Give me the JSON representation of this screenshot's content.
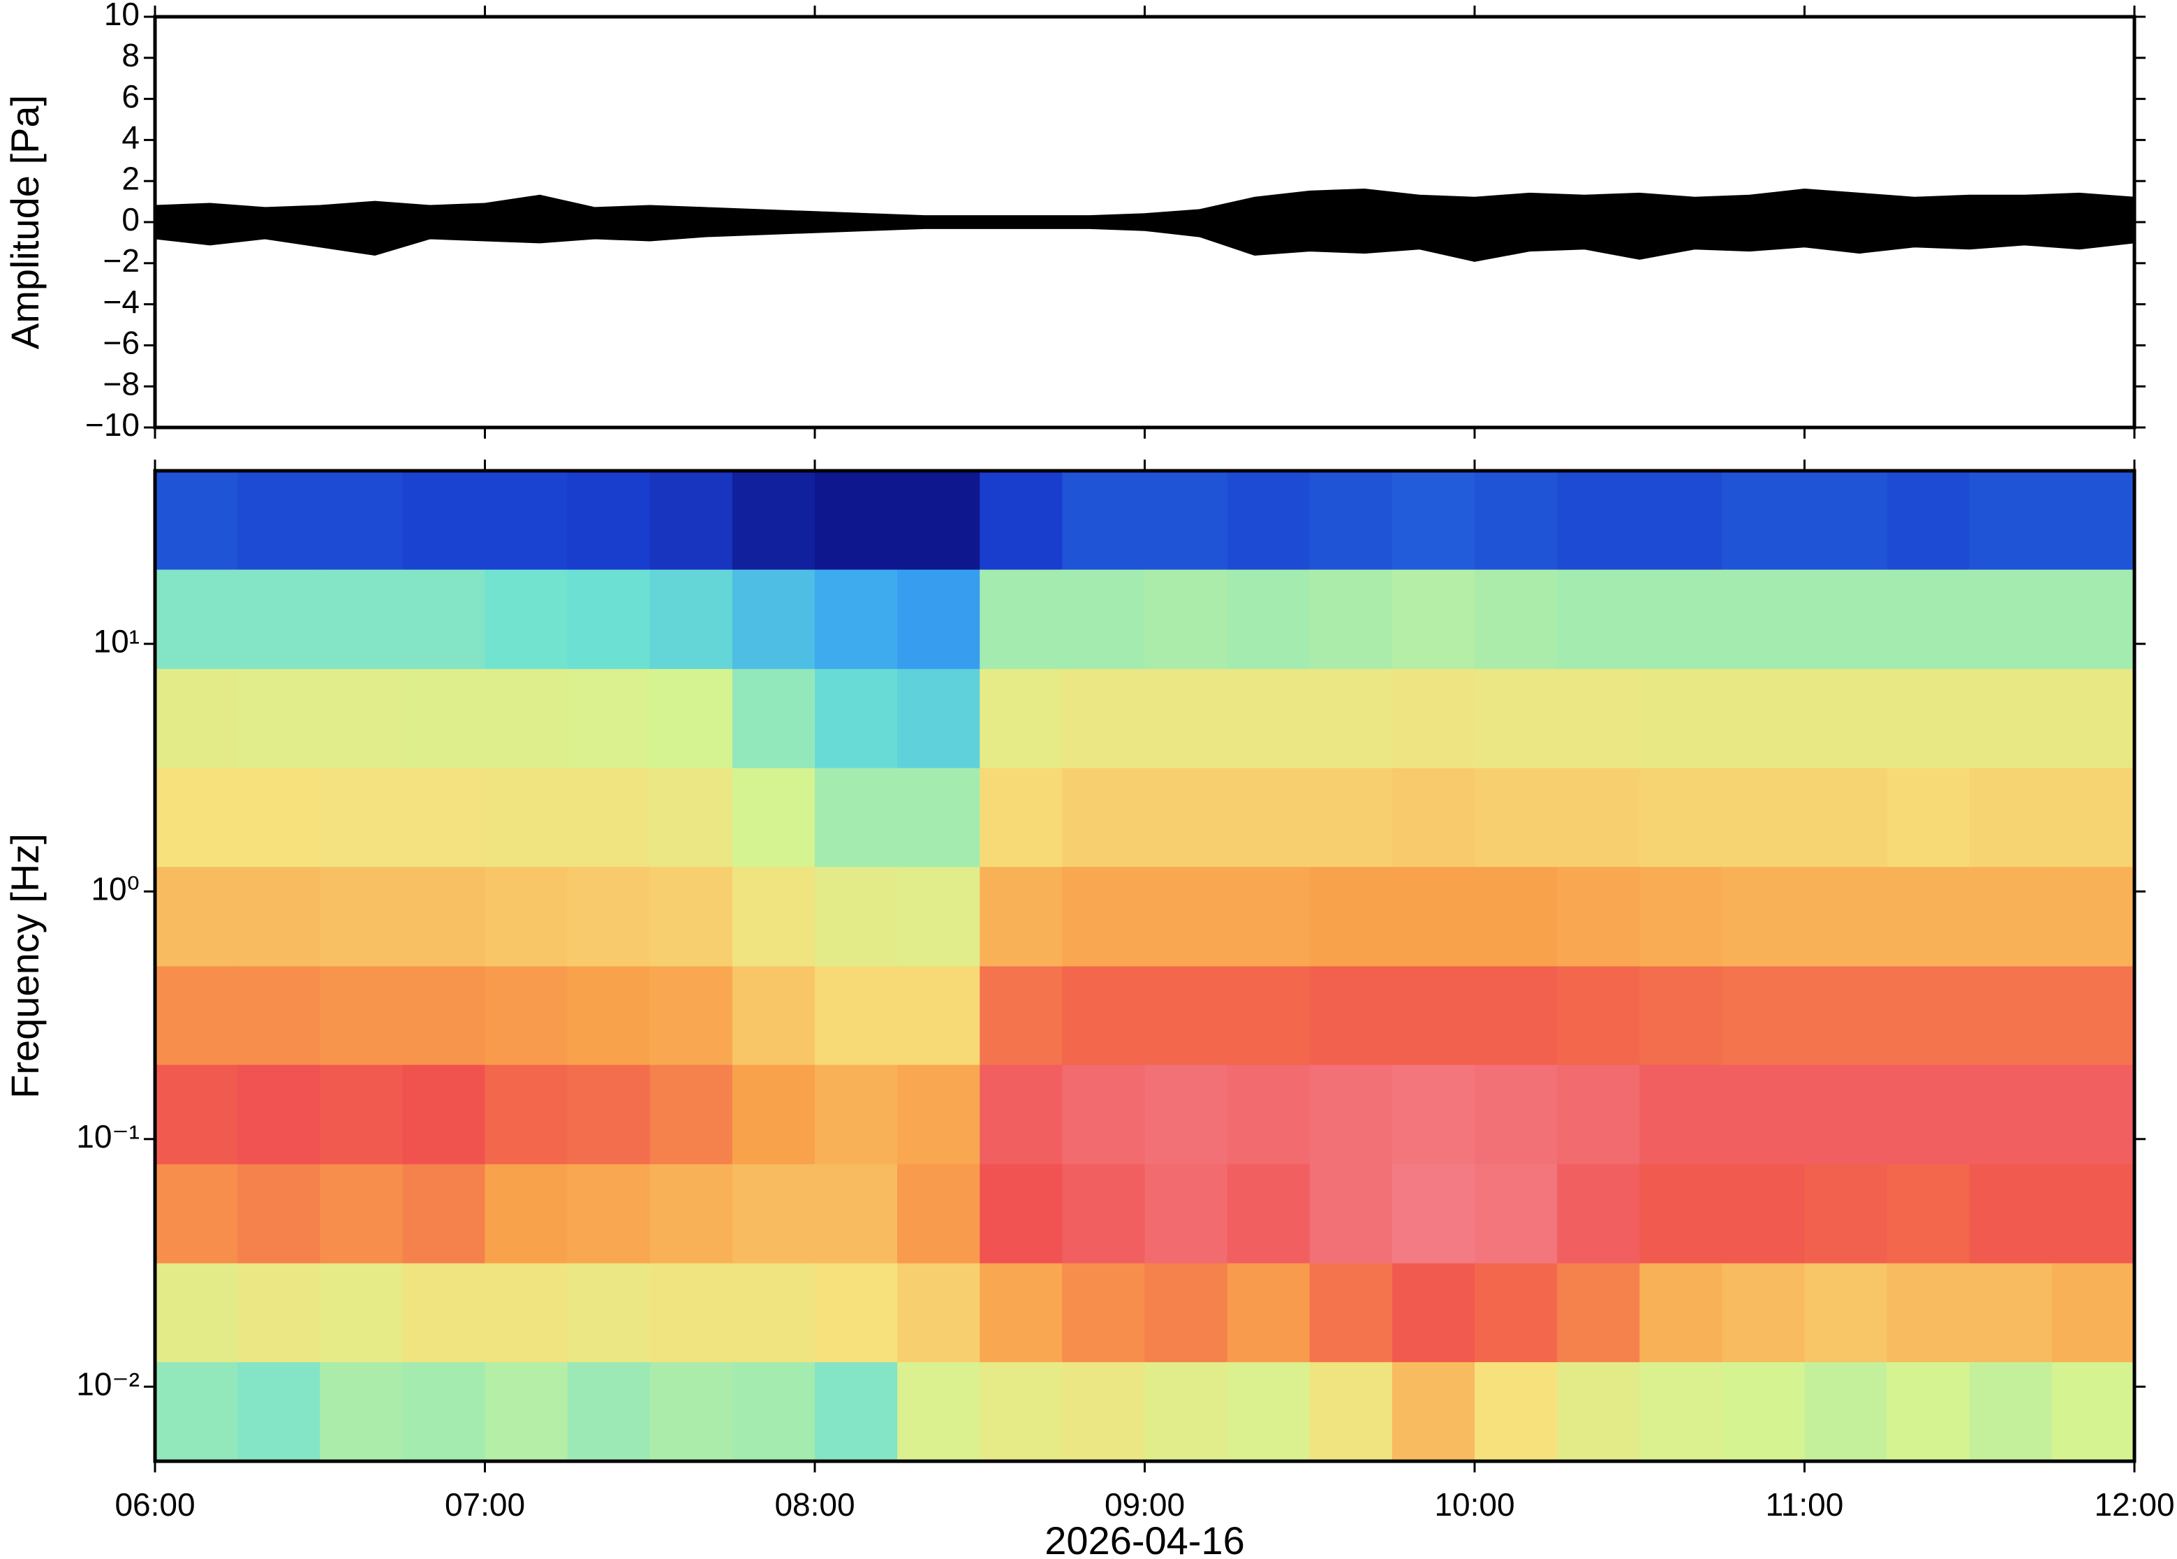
{
  "chart_data": [
    {
      "type": "band",
      "ylabel": "Amplitude [Pa]",
      "x": [
        "06:00",
        "06:10",
        "06:20",
        "06:30",
        "06:40",
        "06:50",
        "07:00",
        "07:10",
        "07:20",
        "07:30",
        "07:40",
        "07:50",
        "08:00",
        "08:10",
        "08:20",
        "08:30",
        "08:40",
        "08:50",
        "09:00",
        "09:10",
        "09:20",
        "09:30",
        "09:40",
        "09:50",
        "10:00",
        "10:10",
        "10:20",
        "10:30",
        "10:40",
        "10:50",
        "11:00",
        "11:10",
        "11:20",
        "11:30",
        "11:40",
        "11:50",
        "12:00"
      ],
      "upper": [
        0.8,
        0.9,
        0.7,
        0.8,
        1.0,
        0.8,
        0.9,
        1.3,
        0.7,
        0.8,
        0.7,
        0.6,
        0.5,
        0.4,
        0.3,
        0.3,
        0.3,
        0.3,
        0.4,
        0.6,
        1.2,
        1.5,
        1.6,
        1.3,
        1.2,
        1.4,
        1.3,
        1.4,
        1.2,
        1.3,
        1.6,
        1.4,
        1.2,
        1.3,
        1.3,
        1.4,
        1.2
      ],
      "lower": [
        -0.8,
        -1.1,
        -0.8,
        -1.2,
        -1.6,
        -0.8,
        -0.9,
        -1.0,
        -0.8,
        -0.9,
        -0.7,
        -0.6,
        -0.5,
        -0.4,
        -0.3,
        -0.3,
        -0.3,
        -0.3,
        -0.4,
        -0.7,
        -1.6,
        -1.4,
        -1.5,
        -1.3,
        -1.9,
        -1.4,
        -1.3,
        -1.8,
        -1.3,
        -1.4,
        -1.2,
        -1.5,
        -1.2,
        -1.3,
        -1.1,
        -1.3,
        -1.0
      ],
      "color": "#000000",
      "xlim": [
        "06:00",
        "12:00"
      ],
      "xticks": [
        "06:00",
        "07:00",
        "08:00",
        "09:00",
        "10:00",
        "11:00",
        "12:00"
      ],
      "ylim": [
        -10,
        10
      ],
      "yticks": [
        {
          "value": -10,
          "label": "−10"
        },
        {
          "value": -8,
          "label": "−8"
        },
        {
          "value": -6,
          "label": "−6"
        },
        {
          "value": -4,
          "label": "−4"
        },
        {
          "value": -2,
          "label": "−2"
        },
        0,
        2,
        4,
        6,
        8,
        10
      ]
    },
    {
      "type": "heatmap",
      "ylabel": "Frequency [Hz]",
      "xlabel": "2026-04-16",
      "log_y": true,
      "x": [
        "06:00",
        "06:15",
        "06:30",
        "06:45",
        "07:00",
        "07:15",
        "07:30",
        "07:45",
        "08:00",
        "08:15",
        "08:30",
        "08:45",
        "09:00",
        "09:15",
        "09:30",
        "09:45",
        "10:00",
        "10:15",
        "10:30",
        "10:45",
        "11:00",
        "11:15",
        "11:30",
        "11:45",
        "12:00"
      ],
      "y_edges": [
        0.005,
        0.0126,
        0.0316,
        0.0794,
        0.2,
        0.5,
        1.26,
        3.16,
        7.94,
        20,
        50
      ],
      "z": [
        [
          0.42,
          0.55,
          0.78,
          0.86,
          0.78,
          0.7,
          0.62,
          0.55,
          0.4,
          0.15
        ],
        [
          0.4,
          0.58,
          0.8,
          0.88,
          0.78,
          0.7,
          0.62,
          0.54,
          0.4,
          0.14
        ],
        [
          0.45,
          0.56,
          0.78,
          0.86,
          0.77,
          0.69,
          0.61,
          0.54,
          0.4,
          0.14
        ],
        [
          0.44,
          0.6,
          0.8,
          0.87,
          0.77,
          0.69,
          0.61,
          0.53,
          0.4,
          0.13
        ],
        [
          0.46,
          0.6,
          0.75,
          0.84,
          0.76,
          0.68,
          0.6,
          0.53,
          0.38,
          0.13
        ],
        [
          0.43,
          0.58,
          0.74,
          0.83,
          0.75,
          0.67,
          0.6,
          0.52,
          0.37,
          0.12
        ],
        [
          0.45,
          0.6,
          0.72,
          0.8,
          0.74,
          0.66,
          0.58,
          0.5,
          0.35,
          0.1
        ],
        [
          0.44,
          0.6,
          0.7,
          0.75,
          0.68,
          0.6,
          0.5,
          0.42,
          0.3,
          0.05
        ],
        [
          0.4,
          0.62,
          0.7,
          0.72,
          0.64,
          0.55,
          0.44,
          0.36,
          0.26,
          0.03
        ],
        [
          0.52,
          0.66,
          0.76,
          0.74,
          0.64,
          0.54,
          0.44,
          0.34,
          0.24,
          0.03
        ],
        [
          0.56,
          0.74,
          0.88,
          0.9,
          0.82,
          0.72,
          0.64,
          0.56,
          0.44,
          0.12
        ],
        [
          0.58,
          0.78,
          0.9,
          0.92,
          0.84,
          0.74,
          0.66,
          0.58,
          0.44,
          0.15
        ],
        [
          0.54,
          0.8,
          0.92,
          0.93,
          0.84,
          0.74,
          0.66,
          0.58,
          0.45,
          0.15
        ],
        [
          0.52,
          0.76,
          0.9,
          0.92,
          0.84,
          0.74,
          0.66,
          0.58,
          0.44,
          0.14
        ],
        [
          0.6,
          0.82,
          0.93,
          0.93,
          0.85,
          0.75,
          0.66,
          0.58,
          0.45,
          0.15
        ],
        [
          0.7,
          0.86,
          0.95,
          0.94,
          0.85,
          0.75,
          0.67,
          0.59,
          0.46,
          0.16
        ],
        [
          0.62,
          0.84,
          0.94,
          0.93,
          0.85,
          0.75,
          0.66,
          0.58,
          0.45,
          0.15
        ],
        [
          0.55,
          0.8,
          0.9,
          0.92,
          0.84,
          0.74,
          0.66,
          0.58,
          0.44,
          0.14
        ],
        [
          0.52,
          0.72,
          0.86,
          0.9,
          0.83,
          0.73,
          0.65,
          0.57,
          0.44,
          0.14
        ],
        [
          0.5,
          0.7,
          0.86,
          0.9,
          0.82,
          0.72,
          0.65,
          0.57,
          0.44,
          0.15
        ],
        [
          0.48,
          0.68,
          0.85,
          0.9,
          0.82,
          0.72,
          0.65,
          0.57,
          0.44,
          0.15
        ],
        [
          0.5,
          0.7,
          0.84,
          0.9,
          0.82,
          0.72,
          0.64,
          0.57,
          0.44,
          0.14
        ],
        [
          0.48,
          0.7,
          0.86,
          0.9,
          0.82,
          0.72,
          0.65,
          0.57,
          0.44,
          0.15
        ],
        [
          0.5,
          0.72,
          0.86,
          0.9,
          0.82,
          0.72,
          0.65,
          0.57,
          0.44,
          0.15
        ]
      ],
      "zlim": [
        0,
        1
      ],
      "colormap": [
        "#0b0b7a",
        "#1a3fd0",
        "#3aa6f2",
        "#6ee2d2",
        "#d6f391",
        "#f7e07c",
        "#f9a24c",
        "#f0504e",
        "#f59aa8"
      ],
      "xlim": [
        "06:00",
        "12:00"
      ],
      "xticks": [
        "06:00",
        "07:00",
        "08:00",
        "09:00",
        "10:00",
        "11:00",
        "12:00"
      ],
      "ylim": [
        0.005,
        50
      ],
      "yticks": [
        {
          "value": 0.01,
          "label": "10⁻²"
        },
        {
          "value": 0.1,
          "label": "10⁻¹"
        },
        {
          "value": 1,
          "label": "10⁰"
        },
        {
          "value": 10,
          "label": "10¹"
        }
      ]
    }
  ]
}
